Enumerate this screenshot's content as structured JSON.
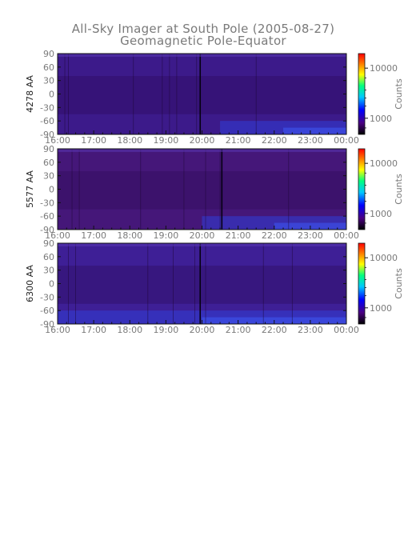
{
  "chart_data": {
    "type": "heatmap",
    "title": "All-Sky Imager at South Pole (2005-08-27)",
    "subtitle": "Geomagnetic Pole-Equator",
    "x_tick_labels": [
      "16:00",
      "17:00",
      "18:00",
      "19:00",
      "20:00",
      "21:00",
      "22:00",
      "23:00",
      "00:00"
    ],
    "y_ticks": [
      90,
      60,
      30,
      0,
      -30,
      -60,
      -90
    ],
    "ylim": [
      -90,
      90
    ],
    "colorbar": {
      "label": "Counts",
      "tick_labels": [
        "10000",
        "1000"
      ],
      "scale": "log",
      "colors": [
        "#000000",
        "#4b0082",
        "#0000ff",
        "#00c8ff",
        "#00ff80",
        "#ffff00",
        "#ff8000",
        "#ff0000"
      ]
    },
    "panels": [
      {
        "ylabel": "4278 AA",
        "base_color": "#3c1a8a",
        "dark_bands_hours": [
          0.2,
          0.3,
          2.1,
          2.9,
          3.1,
          3.3,
          3.85,
          5.5
        ],
        "strong_dark_hour": 3.95,
        "blue_onset_hour": 4.5
      },
      {
        "ylabel": "5577 AA",
        "base_color": "#451779",
        "dark_bands_hours": [
          0.4,
          0.6,
          2.3,
          3.5,
          4.1,
          4.5,
          6.4
        ],
        "strong_dark_hour": 4.55,
        "blue_onset_hour": 4.0
      },
      {
        "ylabel": "6300 AA",
        "base_color": "#3e1f96",
        "dark_bands_hours": [
          0.3,
          0.5,
          2.5,
          3.2,
          3.8,
          4.1,
          5.7,
          6.5
        ],
        "strong_dark_hour": 3.95,
        "blue_onset_hour": 0.0
      }
    ]
  }
}
